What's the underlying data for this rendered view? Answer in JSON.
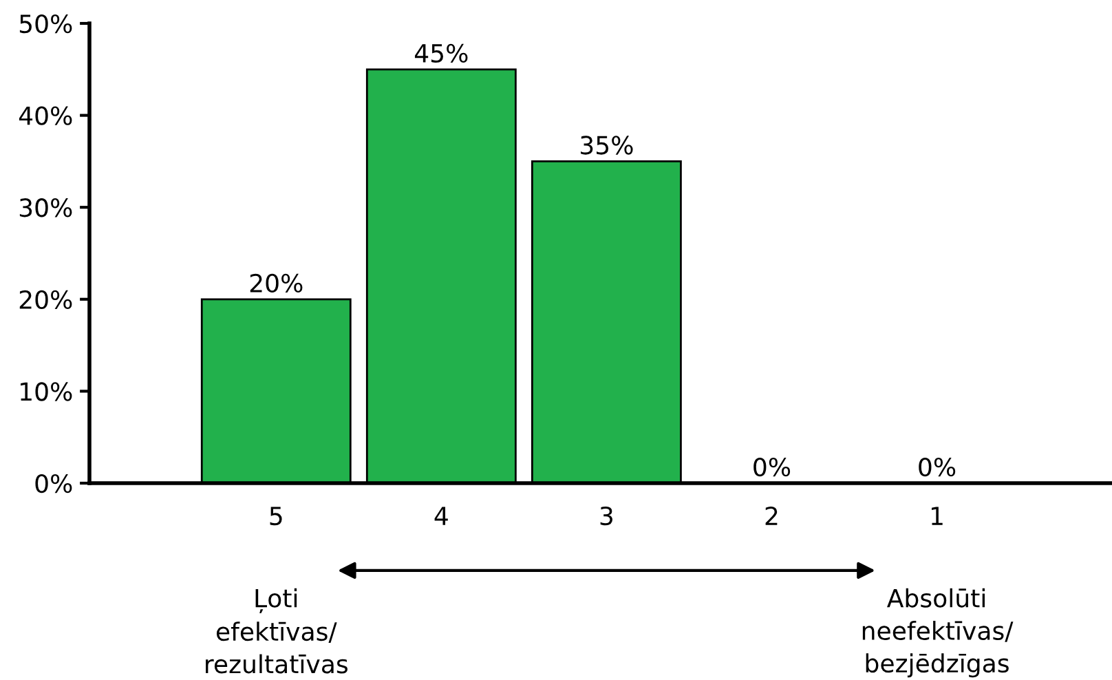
{
  "chart_data": {
    "type": "bar",
    "categories": [
      "5",
      "4",
      "3",
      "2",
      "1"
    ],
    "values": [
      20,
      45,
      35,
      0,
      0
    ],
    "color": "#22b14c",
    "value_labels": [
      "20%",
      "45%",
      "35%",
      "0%",
      "0%"
    ],
    "ylim": [
      0,
      50
    ],
    "yticks": [
      {
        "value": 0,
        "label": "0%"
      },
      {
        "value": 10,
        "label": "10%"
      },
      {
        "value": 20,
        "label": "20%"
      },
      {
        "value": 30,
        "label": "30%"
      },
      {
        "value": 40,
        "label": "40%"
      },
      {
        "value": 50,
        "label": "50%"
      }
    ],
    "grid": false,
    "legend": false,
    "annotations": [
      "Ļoti\nefektīvas/\nrezultatīvas",
      "Absolūti\nneefektīvas/\nbezjēdzīgas"
    ]
  }
}
